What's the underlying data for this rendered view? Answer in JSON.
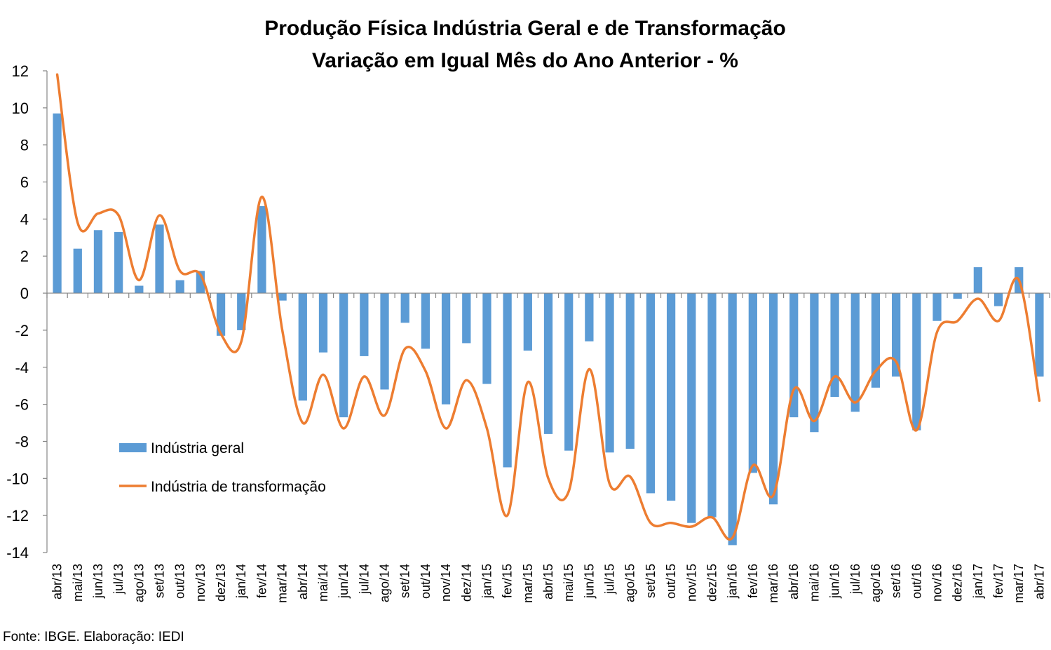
{
  "chart_data": {
    "type": "bar",
    "title": "Produção Física Indústria Geral e de Transformação",
    "subtitle": "Variação em Igual Mês do Ano Anterior - %",
    "categories": [
      "abr/13",
      "mai/13",
      "jun/13",
      "jul/13",
      "ago/13",
      "set/13",
      "out/13",
      "nov/13",
      "dez/13",
      "jan/14",
      "fev/14",
      "mar/14",
      "abr/14",
      "mai/14",
      "jun/14",
      "jul/14",
      "ago/14",
      "set/14",
      "out/14",
      "nov/14",
      "dez/14",
      "jan/15",
      "fev/15",
      "mar/15",
      "abr/15",
      "mai/15",
      "jun/15",
      "jul/15",
      "ago/15",
      "set/15",
      "out/15",
      "nov/15",
      "dez/15",
      "jan/16",
      "fev/16",
      "mar/16",
      "abr/16",
      "mai/16",
      "jun/16",
      "jul/16",
      "ago/16",
      "set/16",
      "out/16",
      "nov/16",
      "dez/16",
      "jan/17",
      "fev/17",
      "mar/17",
      "abr/17"
    ],
    "series": [
      {
        "name": "Indústria geral",
        "type": "bar",
        "color": "#5B9BD5",
        "values": [
          9.7,
          2.4,
          3.4,
          3.3,
          0.4,
          3.7,
          0.7,
          1.2,
          -2.3,
          -2.0,
          4.7,
          -0.4,
          -5.8,
          -3.2,
          -6.7,
          -3.4,
          -5.2,
          -1.6,
          -3.0,
          -6.0,
          -2.7,
          -4.9,
          -9.4,
          -3.1,
          -7.6,
          -8.5,
          -2.6,
          -8.6,
          -8.4,
          -10.8,
          -11.2,
          -12.4,
          -12.1,
          -13.6,
          -9.7,
          -11.4,
          -6.7,
          -7.5,
          -5.6,
          -6.4,
          -5.1,
          -4.5,
          -7.4,
          -1.5,
          -0.3,
          1.4,
          -0.7,
          1.4,
          -4.5
        ]
      },
      {
        "name": "Indústria de transformação",
        "type": "line",
        "color": "#ED7D31",
        "values": [
          11.8,
          3.8,
          4.3,
          4.2,
          0.7,
          4.2,
          1.2,
          1.0,
          -2.2,
          -2.6,
          5.2,
          -2.0,
          -7.0,
          -4.4,
          -7.3,
          -4.5,
          -6.6,
          -3.0,
          -4.2,
          -7.3,
          -4.7,
          -7.3,
          -12.0,
          -4.8,
          -10.0,
          -10.7,
          -4.1,
          -10.3,
          -9.9,
          -12.4,
          -12.4,
          -12.6,
          -12.1,
          -13.2,
          -9.3,
          -10.9,
          -5.2,
          -6.9,
          -4.5,
          -5.9,
          -4.2,
          -3.7,
          -7.4,
          -2.1,
          -1.5,
          -0.3,
          -1.5,
          0.7,
          -5.8
        ]
      }
    ],
    "ylim": [
      -14,
      12
    ],
    "yticks": [
      12,
      10,
      8,
      6,
      4,
      2,
      0,
      -2,
      -4,
      -6,
      -8,
      -10,
      -12,
      -14
    ],
    "xlabel": "",
    "ylabel": "",
    "grid": false,
    "legend_position": "bottom-left inside plot"
  },
  "footer": {
    "source": "Fonte: IBGE. Elaboração: IEDI"
  }
}
